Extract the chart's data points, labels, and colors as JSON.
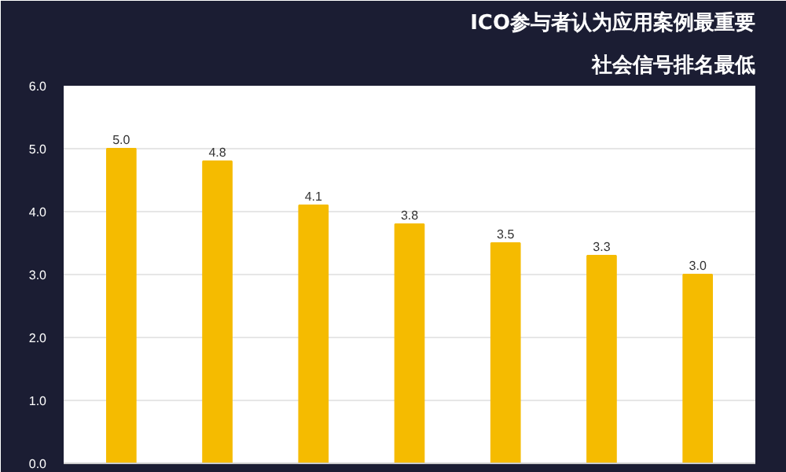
{
  "chart_data": {
    "type": "bar",
    "title": "ICO参与者认为应用案例最重要",
    "subtitle": "社会信号排名最低",
    "categories": [
      null,
      null,
      null,
      null,
      null,
      null,
      null
    ],
    "values": [
      5.0,
      4.8,
      4.1,
      3.8,
      3.5,
      3.3,
      3.0
    ],
    "color": "#f5bb00",
    "value_labels": [
      "5.0",
      "4.8",
      "4.1",
      "3.8",
      "3.5",
      "3.3",
      "3.0"
    ],
    "ylim": [
      0,
      6
    ],
    "yticks": [
      {
        "value": 0,
        "label": "0.0"
      },
      {
        "value": 1,
        "label": "1.0"
      },
      {
        "value": 2,
        "label": "2.0"
      },
      {
        "value": 3,
        "label": "3.0"
      },
      {
        "value": 4,
        "label": "4.0"
      },
      {
        "value": 5,
        "label": "5.0"
      },
      {
        "value": 6,
        "label": "6.0"
      }
    ],
    "grid": "y"
  }
}
